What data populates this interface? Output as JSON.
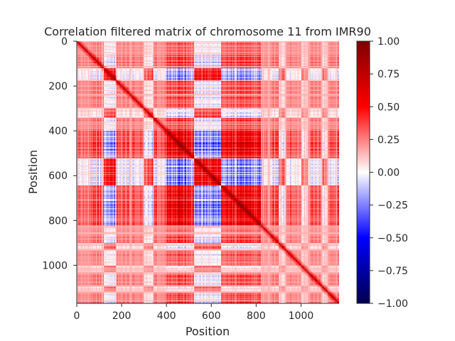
{
  "chart_data": {
    "type": "heatmap",
    "title": "Correlation filtered matrix of chromosome 11 from IMR90",
    "xlabel": "Position",
    "ylabel": "Position",
    "n": 1170,
    "xlim": [
      0,
      1170
    ],
    "ylim": [
      1170,
      0
    ],
    "x_ticks": [
      0,
      200,
      400,
      600,
      800,
      1000
    ],
    "y_ticks": [
      0,
      200,
      400,
      600,
      800,
      1000
    ],
    "colormap": "seismic",
    "colorbar": {
      "range": [
        -1.0,
        1.0
      ],
      "ticks": [
        1.0,
        0.75,
        0.5,
        0.25,
        0.0,
        -0.25,
        -0.5,
        -0.75,
        -1.0
      ],
      "tick_labels": [
        "1.00",
        "0.75",
        "0.50",
        "0.25",
        "0.00",
        "−0.25",
        "−0.50",
        "−0.75",
        "−1.00"
      ]
    },
    "diagonal_value": 1.0,
    "value_range": [
      -0.6,
      1.0
    ]
  }
}
